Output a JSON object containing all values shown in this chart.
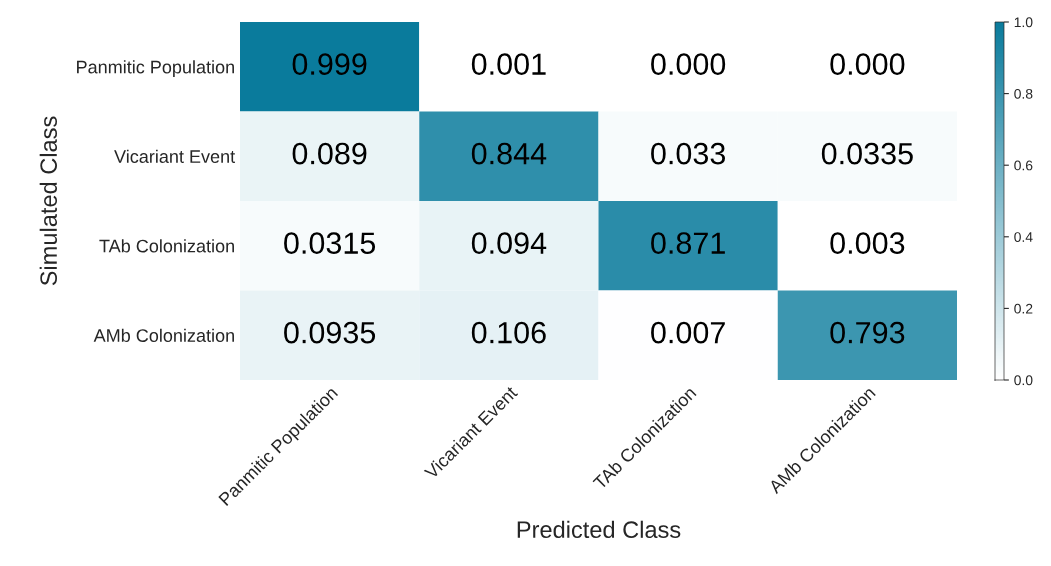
{
  "chart_data": {
    "type": "heatmap",
    "xlabel": "Predicted Class",
    "ylabel": "Simulated Class",
    "categories": [
      "Panmitic Population",
      "Vicariant Event",
      "TAb Colonization",
      "AMb Colonization"
    ],
    "y_categories": [
      "Panmitic Population",
      "Vicariant Event",
      "TAb Colonization",
      "AMb Colonization"
    ],
    "cells": [
      [
        0.999,
        0.001,
        0.0,
        0.0
      ],
      [
        0.089,
        0.844,
        0.033,
        0.0335
      ],
      [
        0.0315,
        0.094,
        0.871,
        0.003
      ],
      [
        0.0935,
        0.106,
        0.007,
        0.793
      ]
    ],
    "cell_labels": [
      [
        "0.999",
        "0.001",
        "0.000",
        "0.000"
      ],
      [
        "0.089",
        "0.844",
        "0.033",
        "0.0335"
      ],
      [
        "0.0315",
        "0.094",
        "0.871",
        "0.003"
      ],
      [
        "0.0935",
        "0.106",
        "0.007",
        "0.793"
      ]
    ],
    "clim": [
      0.0,
      1.0
    ],
    "cticks": [
      {
        "value": 0,
        "label": "0.0"
      },
      {
        "value": 0.2,
        "label": "0.2"
      },
      {
        "value": 0.4,
        "label": "0.4"
      },
      {
        "value": 0.6,
        "label": "0.6"
      },
      {
        "value": 0.8,
        "label": "0.8"
      },
      {
        "value": 1,
        "label": "1.0"
      }
    ]
  }
}
